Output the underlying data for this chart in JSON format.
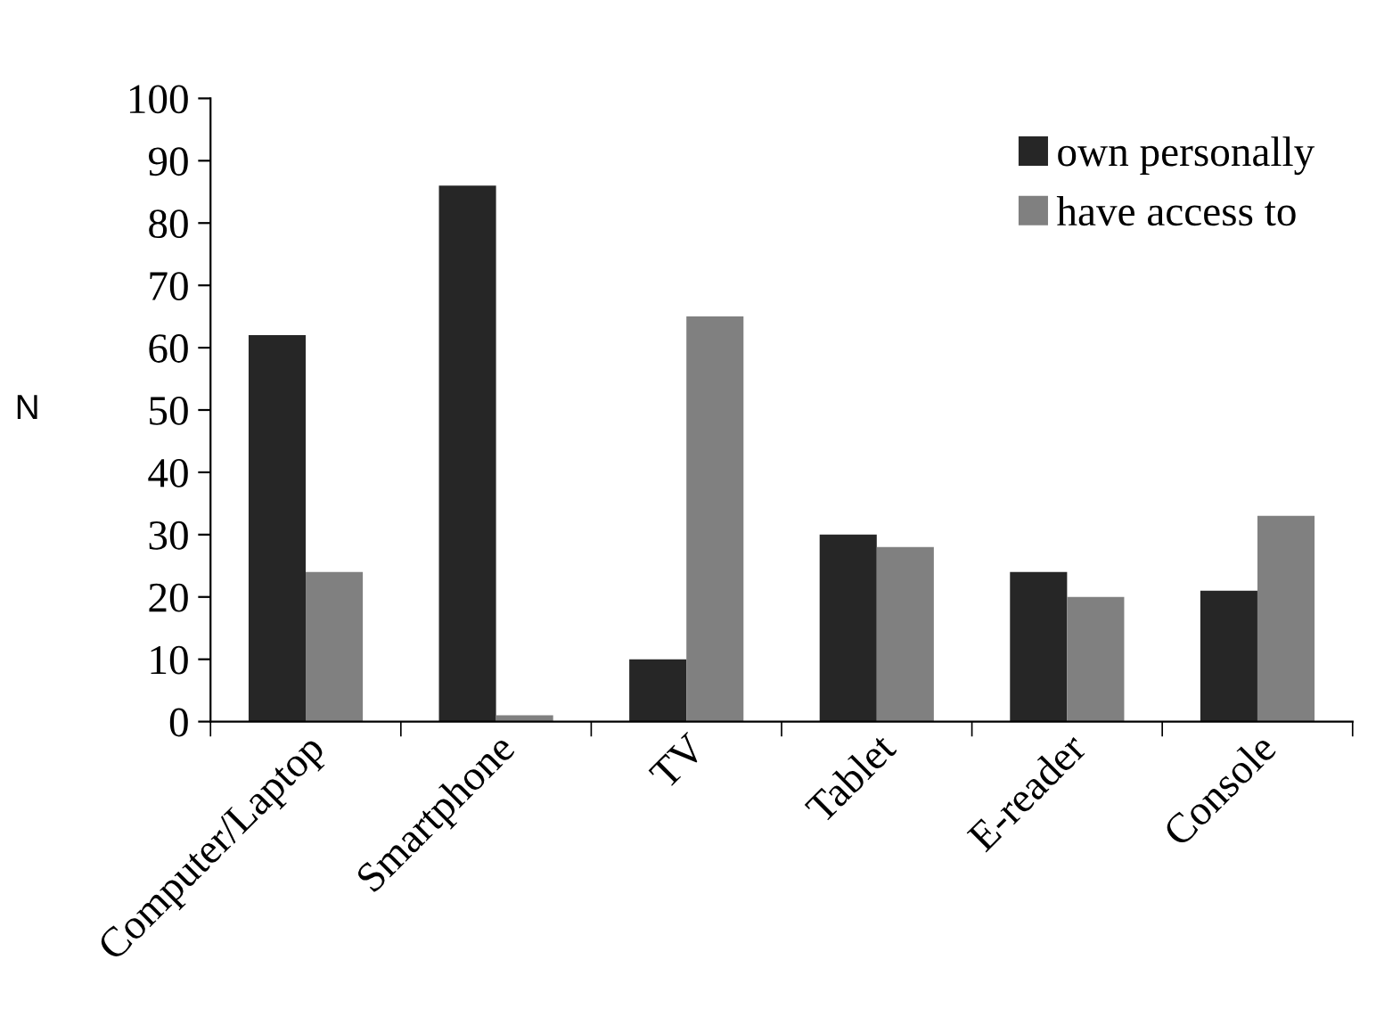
{
  "chart_data": {
    "type": "bar",
    "ylabel": "N",
    "categories": [
      "Computer/Laptop",
      "Smartphone",
      "TV",
      "Tablet",
      "E-reader",
      "Console"
    ],
    "series": [
      {
        "name": "own personally",
        "color": "#262626",
        "values": [
          62,
          86,
          10,
          30,
          24,
          21
        ]
      },
      {
        "name": "have access to",
        "color": "#808080",
        "values": [
          24,
          1,
          65,
          28,
          20,
          33
        ]
      }
    ],
    "ylim": [
      0,
      100
    ],
    "yticks": [
      0,
      10,
      20,
      30,
      40,
      50,
      60,
      70,
      80,
      90,
      100
    ],
    "grid": false,
    "legend": "top right"
  }
}
